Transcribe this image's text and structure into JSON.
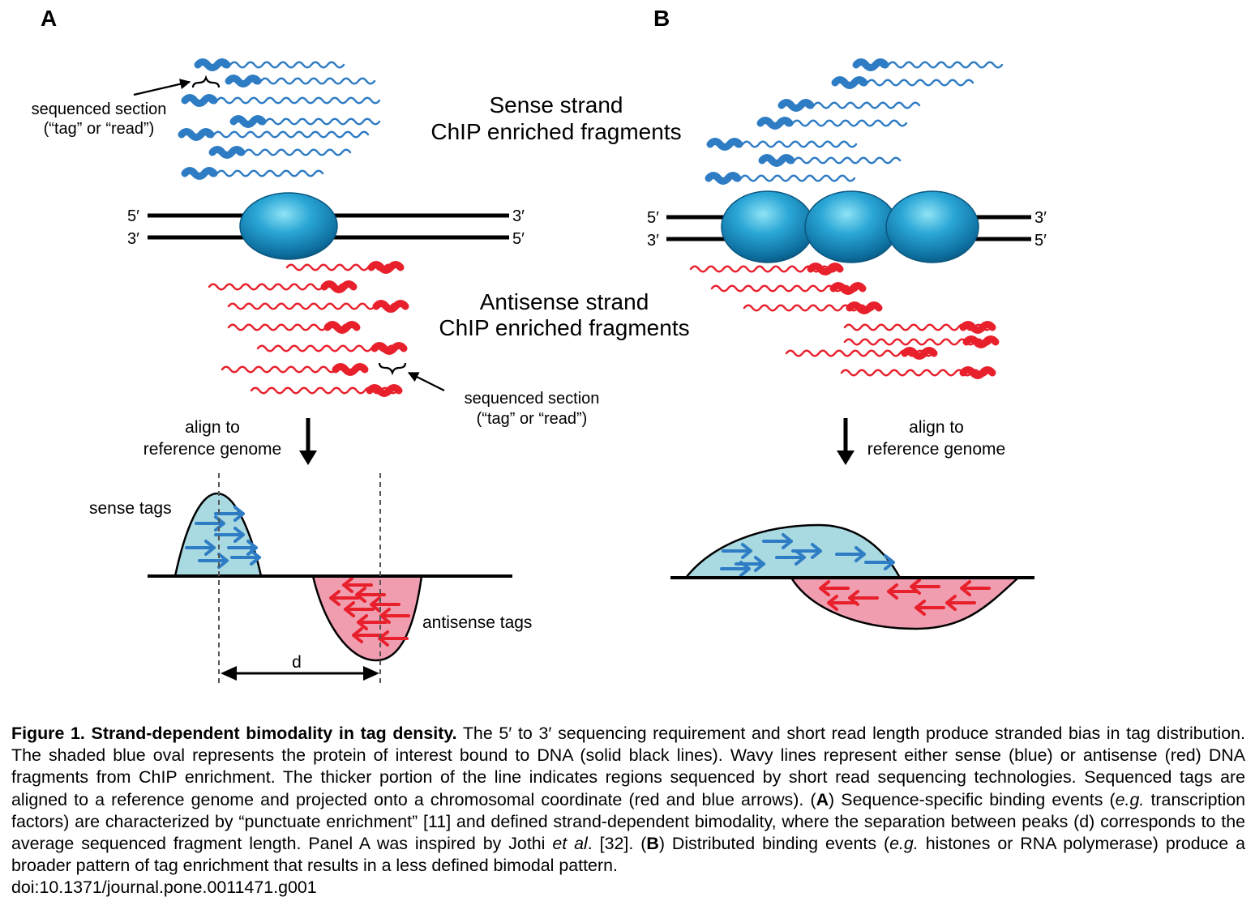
{
  "panel_a": {
    "letter": "A",
    "dna_top_left": "5′",
    "dna_top_right": "3′",
    "dna_bottom_left": "3′",
    "dna_bottom_right": "5′",
    "sense_note_line1": "sequenced section",
    "sense_note_line2": "(“tag” or  “read”)",
    "antisense_note_line1": "sequenced section",
    "antisense_note_line2": "(“tag” or  “read”)",
    "align_line1": "align to",
    "align_line2": "reference genome",
    "sense_tags": "sense tags",
    "antisense_tags": "antisense tags",
    "distance": "d"
  },
  "center": {
    "sense_line1": "Sense strand",
    "sense_line2": "ChIP enriched fragments",
    "antisense_line1": "Antisense strand",
    "antisense_line2": "ChIP enriched fragments"
  },
  "panel_b": {
    "letter": "B",
    "dna_top_left": "5′",
    "dna_top_right": "3′",
    "dna_bottom_left": "3′",
    "dna_bottom_right": "5′",
    "align_line1": "align to",
    "align_line2": "reference genome"
  },
  "caption": {
    "title": "Figure 1. Strand-dependent bimodality in tag density.",
    "body1": " The 5′ to 3′ sequencing requirement and short read length produce stranded bias in tag distribution. The shaded blue oval represents the protein of interest bound to DNA (solid black lines). Wavy lines represent either sense (blue) or antisense (red) DNA fragments from ChIP enrichment. The thicker portion of the line indicates regions sequenced by short read sequencing technologies. Sequenced tags are aligned to a reference genome and projected onto a chromosomal coordinate (red and blue arrows). (",
    "a_ref": "A",
    "body2": ") Sequence-specific binding events (",
    "eg1": "e.g.",
    "body3": " transcription factors) are characterized by “punctuate enrichment” [11] and defined strand-dependent bimodality, where the separation between peaks (d) corresponds to the average sequenced fragment length. Panel A was inspired by Jothi ",
    "et_al": "et al",
    "body4": ". [32]. (",
    "b_ref": "B",
    "body5": ") Distributed binding events (",
    "eg2": "e.g.",
    "body6": " histones or RNA polymerase) produce a broader pattern of tag enrichment that results in a less defined bimodal pattern.",
    "doi": "doi:10.1371/journal.pone.0011471.g001"
  },
  "colors": {
    "sense_blue": "#2e7cc4",
    "antisense_red": "#e8202c",
    "protein_blue": "#1a8fc4",
    "sense_fill": "#a9d9e1",
    "antisense_fill": "#f09db0"
  },
  "icons": [
    "protein-oval",
    "sense-fragment",
    "antisense-fragment",
    "sense-tag-arrow",
    "antisense-tag-arrow",
    "align-down-arrow"
  ]
}
